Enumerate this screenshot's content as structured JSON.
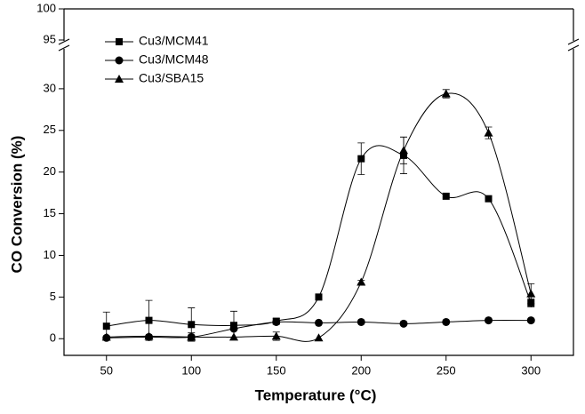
{
  "chart_data": {
    "type": "line",
    "x_label": "Temperature (°C)",
    "y_label": "CO Conversion (%)",
    "x": [
      50,
      75,
      100,
      125,
      150,
      175,
      200,
      225,
      250,
      275,
      300
    ],
    "xlim": [
      25,
      325
    ],
    "xticks": [
      50,
      100,
      150,
      200,
      250,
      300
    ],
    "ylim": [
      -2,
      35
    ],
    "yticks": [
      0,
      5,
      10,
      15,
      20,
      25,
      30
    ],
    "y_break_lim": [
      94.5,
      100
    ],
    "y_break_ticks": [
      95,
      100
    ],
    "legend": "upper left",
    "series": [
      {
        "name": "Cu3/MCM41",
        "color": "#000000",
        "marker": "square",
        "values": [
          1.5,
          2.2,
          1.7,
          1.6,
          2.1,
          5.0,
          21.6,
          22.0,
          17.1,
          16.8,
          4.3
        ],
        "errors": [
          1.7,
          2.4,
          2.0,
          1.7,
          0.3,
          0,
          1.9,
          2.2,
          0,
          0,
          0.5
        ]
      },
      {
        "name": "Cu3/MCM48",
        "color": "#000000",
        "marker": "circle",
        "values": [
          0.1,
          0.2,
          0.2,
          1.2,
          2.0,
          1.9,
          2.0,
          1.8,
          2.0,
          2.2,
          2.2
        ],
        "errors": [
          0,
          0,
          0,
          0,
          0,
          0,
          0,
          0,
          0,
          0,
          0
        ]
      },
      {
        "name": "Cu3/SBA15",
        "color": "#000000",
        "marker": "triangle",
        "values": [
          0.2,
          0.3,
          0.2,
          0.2,
          0.3,
          0.1,
          6.8,
          22.6,
          29.4,
          24.7,
          5.4
        ],
        "errors": [
          0,
          0,
          0.5,
          0,
          0.5,
          0,
          0.2,
          1.6,
          0.5,
          0.7,
          1.2
        ]
      }
    ]
  }
}
